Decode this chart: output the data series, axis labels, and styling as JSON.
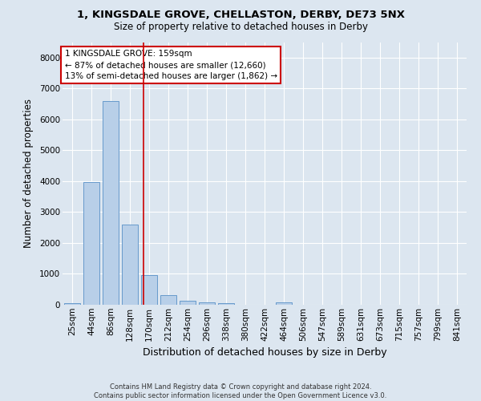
{
  "title": "1, KINGSDALE GROVE, CHELLASTON, DERBY, DE73 5NX",
  "subtitle": "Size of property relative to detached houses in Derby",
  "xlabel": "Distribution of detached houses by size in Derby",
  "ylabel": "Number of detached properties",
  "footer_line1": "Contains HM Land Registry data © Crown copyright and database right 2024.",
  "footer_line2": "Contains public sector information licensed under the Open Government Licence v3.0.",
  "bin_labels": [
    "25sqm",
    "44sqm",
    "86sqm",
    "128sqm",
    "170sqm",
    "212sqm",
    "254sqm",
    "296sqm",
    "338sqm",
    "380sqm",
    "422sqm",
    "464sqm",
    "506sqm",
    "547sqm",
    "589sqm",
    "631sqm",
    "673sqm",
    "715sqm",
    "757sqm",
    "799sqm",
    "841sqm"
  ],
  "bar_values": [
    50,
    3980,
    6600,
    2600,
    950,
    310,
    125,
    90,
    60,
    5,
    5,
    80,
    5,
    0,
    0,
    0,
    0,
    0,
    0,
    0,
    0
  ],
  "bar_color": "#b8cfe8",
  "bar_edge_color": "#6699cc",
  "bg_color": "#dce6f0",
  "grid_color": "#ffffff",
  "vline_color": "#cc0000",
  "annotation_text": "1 KINGSDALE GROVE: 159sqm\n← 87% of detached houses are smaller (12,660)\n13% of semi-detached houses are larger (1,862) →",
  "annotation_box_facecolor": "#ffffff",
  "annotation_box_edgecolor": "#cc0000",
  "ylim": [
    0,
    8500
  ],
  "yticks": [
    0,
    1000,
    2000,
    3000,
    4000,
    5000,
    6000,
    7000,
    8000
  ],
  "vline_pos": 3.72,
  "title_fontsize": 9.5,
  "subtitle_fontsize": 8.5,
  "xlabel_fontsize": 9,
  "ylabel_fontsize": 8.5,
  "tick_fontsize": 7.5,
  "footer_fontsize": 6,
  "annotation_fontsize": 7.5
}
